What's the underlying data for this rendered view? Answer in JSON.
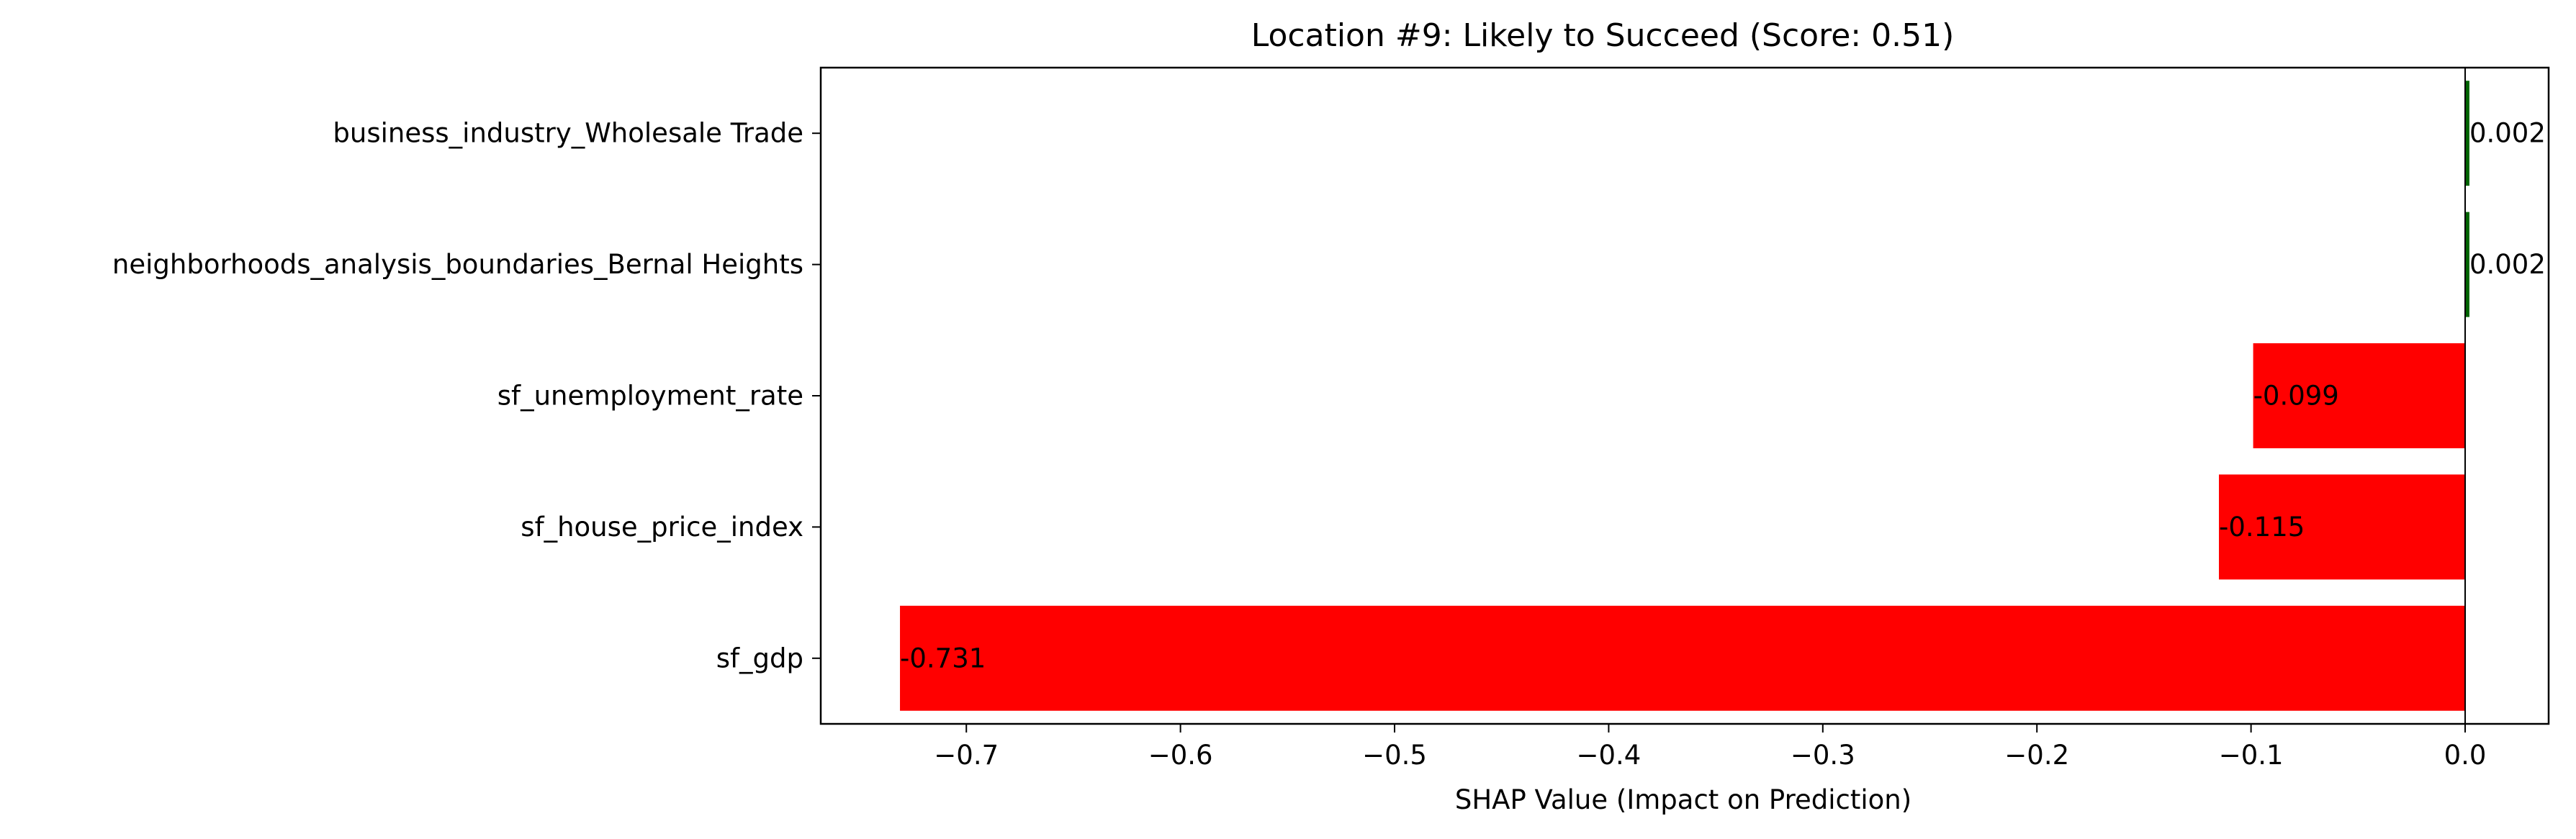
{
  "chart_data": {
    "type": "bar",
    "orientation": "horizontal",
    "title": "Location #9: Likely to Succeed (Score: 0.51)",
    "xlabel": "SHAP Value (Impact on Prediction)",
    "ylabel": "",
    "categories": [
      "business_industry_Wholesale Trade",
      "neighborhoods_analysis_boundaries_Bernal Heights",
      "sf_unemployment_rate",
      "sf_house_price_index",
      "sf_gdp"
    ],
    "values": [
      0.002,
      0.002,
      -0.099,
      -0.115,
      -0.731
    ],
    "value_labels": [
      "0.002",
      "0.002",
      "-0.099",
      "-0.115",
      "-0.731"
    ],
    "bar_colors": [
      "#006400",
      "#006400",
      "#ff0000",
      "#ff0000",
      "#ff0000"
    ],
    "xlim": [
      -0.768,
      0.039
    ],
    "xticks": [
      -0.7,
      -0.6,
      -0.5,
      -0.4,
      -0.3,
      -0.2,
      -0.1,
      0.0
    ],
    "xtick_labels": [
      "−0.7",
      "−0.6",
      "−0.5",
      "−0.4",
      "−0.3",
      "−0.2",
      "−0.1",
      "0.0"
    ],
    "zero_line": true,
    "grid": false,
    "legend": "none"
  }
}
